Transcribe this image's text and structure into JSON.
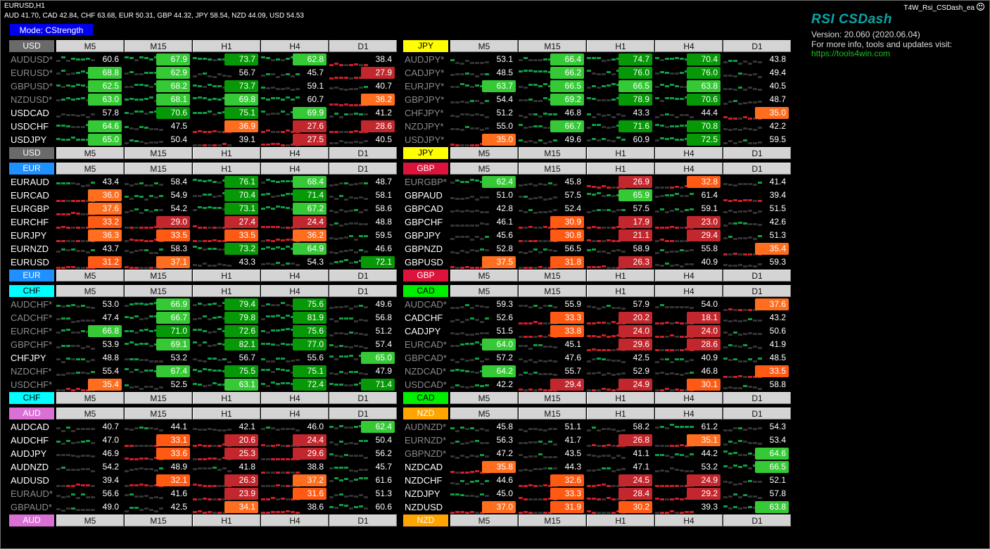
{
  "window": {
    "chart_title": "EURUSD,H1",
    "strength_line": "AUD 41.70, CAD 42.84, CHF 63.68, EUR 50.31, GBP 44.32, JPY 58.54, NZD 44.09, USD 54.53",
    "ea_name": "T4W_Rsi_CSDash_ea"
  },
  "mode_button": "Mode: CStrength",
  "info": {
    "title": "RSI CSDash",
    "version": "Version: 20.060 (2020.06.04)",
    "more": "For more info, tools and updates visit:",
    "link": "https://tools4win.com"
  },
  "timeframes": [
    "M5",
    "M15",
    "H1",
    "H4",
    "D1"
  ],
  "colors": {
    "green_dark": "#069806",
    "green_light": "#36c936",
    "red": "#c2272d",
    "orange": "#ff5a14",
    "orange_light": "#ff6d1e",
    "bar_gray": "#333333",
    "bar_green": "#0f9d44",
    "bar_red": "#cc1f2a",
    "sym_normal": "#ffffff",
    "sym_inverted": "#8a8a8a"
  },
  "panels": [
    {
      "currency": "USD",
      "color": "#6a6a6a",
      "text_color": "#ffffff",
      "rows": [
        {
          "symbol": "AUDUSD*",
          "inv": true,
          "values": [
            "60.6",
            "67.9",
            "73.7",
            "62.8",
            "38.4"
          ]
        },
        {
          "symbol": "EURUSD*",
          "inv": true,
          "values": [
            "68.8",
            "62.9",
            "56.7",
            "45.7",
            "27.9"
          ]
        },
        {
          "symbol": "GBPUSD*",
          "inv": true,
          "values": [
            "62.5",
            "68.2",
            "73.7",
            "59.1",
            "40.7"
          ]
        },
        {
          "symbol": "NZDUSD*",
          "inv": true,
          "values": [
            "63.0",
            "68.1",
            "69.8",
            "60.7",
            "36.2"
          ]
        },
        {
          "symbol": "USDCAD",
          "inv": false,
          "values": [
            "57.8",
            "70.6",
            "75.1",
            "69.9",
            "41.2"
          ]
        },
        {
          "symbol": "USDCHF",
          "inv": false,
          "values": [
            "64.6",
            "47.5",
            "36.9",
            "27.6",
            "28.6"
          ]
        },
        {
          "symbol": "USDJPY",
          "inv": false,
          "values": [
            "65.0",
            "50.4",
            "39.1",
            "27.5",
            "40.5"
          ]
        }
      ]
    },
    {
      "currency": "JPY",
      "color": "#ffff00",
      "text_color": "#000000",
      "rows": [
        {
          "symbol": "AUDJPY*",
          "inv": true,
          "values": [
            "53.1",
            "66.4",
            "74.7",
            "70.4",
            "43.8"
          ]
        },
        {
          "symbol": "CADJPY*",
          "inv": true,
          "values": [
            "48.5",
            "66.2",
            "76.0",
            "76.0",
            "49.4"
          ]
        },
        {
          "symbol": "EURJPY*",
          "inv": true,
          "values": [
            "63.7",
            "66.5",
            "66.5",
            "63.8",
            "40.5"
          ]
        },
        {
          "symbol": "GBPJPY*",
          "inv": true,
          "values": [
            "54.4",
            "69.2",
            "78.9",
            "70.6",
            "48.7"
          ]
        },
        {
          "symbol": "CHFJPY*",
          "inv": true,
          "values": [
            "51.2",
            "46.8",
            "43.3",
            "44.4",
            "35.0"
          ]
        },
        {
          "symbol": "NZDJPY*",
          "inv": true,
          "values": [
            "55.0",
            "66.7",
            "71.6",
            "70.8",
            "42.2"
          ]
        },
        {
          "symbol": "USDJPY*",
          "inv": true,
          "values": [
            "35.0",
            "49.6",
            "60.9",
            "72.5",
            "59.5"
          ]
        }
      ]
    },
    {
      "currency": "EUR",
      "color": "#1e90ff",
      "text_color": "#ffffff",
      "rows": [
        {
          "symbol": "EURAUD",
          "inv": false,
          "values": [
            "43.4",
            "58.4",
            "76.1",
            "68.4",
            "48.7"
          ]
        },
        {
          "symbol": "EURCAD",
          "inv": false,
          "values": [
            "36.0",
            "54.9",
            "70.4",
            "71.4",
            "58.1"
          ]
        },
        {
          "symbol": "EURGBP",
          "inv": false,
          "values": [
            "37.6",
            "54.2",
            "73.1",
            "67.2",
            "58.6"
          ]
        },
        {
          "symbol": "EURCHF",
          "inv": false,
          "values": [
            "33.2",
            "29.0",
            "27.4",
            "24.4",
            "48.8"
          ]
        },
        {
          "symbol": "EURJPY",
          "inv": false,
          "values": [
            "36.3",
            "33.5",
            "33.5",
            "36.2",
            "59.5"
          ]
        },
        {
          "symbol": "EURNZD",
          "inv": false,
          "values": [
            "43.7",
            "58.3",
            "73.2",
            "64.9",
            "46.6"
          ]
        },
        {
          "symbol": "EURUSD",
          "inv": false,
          "values": [
            "31.2",
            "37.1",
            "43.3",
            "54.3",
            "72.1"
          ]
        }
      ]
    },
    {
      "currency": "GBP",
      "color": "#dc143c",
      "text_color": "#ffffff",
      "rows": [
        {
          "symbol": "EURGBP*",
          "inv": true,
          "values": [
            "62.4",
            "45.8",
            "26.9",
            "32.8",
            "41.4"
          ]
        },
        {
          "symbol": "GBPAUD",
          "inv": false,
          "values": [
            "51.0",
            "57.5",
            "65.9",
            "61.4",
            "39.4"
          ]
        },
        {
          "symbol": "GBPCAD",
          "inv": false,
          "values": [
            "42.8",
            "52.4",
            "57.5",
            "59.1",
            "51.5"
          ]
        },
        {
          "symbol": "GBPCHF",
          "inv": false,
          "values": [
            "46.1",
            "30.9",
            "17.9",
            "23.0",
            "42.6"
          ]
        },
        {
          "symbol": "GBPJPY",
          "inv": false,
          "values": [
            "45.6",
            "30.8",
            "21.1",
            "29.4",
            "51.3"
          ]
        },
        {
          "symbol": "GBPNZD",
          "inv": false,
          "values": [
            "52.8",
            "56.5",
            "58.9",
            "55.8",
            "35.4"
          ]
        },
        {
          "symbol": "GBPUSD",
          "inv": false,
          "values": [
            "37.5",
            "31.8",
            "26.3",
            "40.9",
            "59.3"
          ]
        }
      ]
    },
    {
      "currency": "CHF",
      "color": "#00ffff",
      "text_color": "#000000",
      "rows": [
        {
          "symbol": "AUDCHF*",
          "inv": true,
          "values": [
            "53.0",
            "66.9",
            "79.4",
            "75.6",
            "49.6"
          ]
        },
        {
          "symbol": "CADCHF*",
          "inv": true,
          "values": [
            "47.4",
            "66.7",
            "79.8",
            "81.9",
            "56.8"
          ]
        },
        {
          "symbol": "EURCHF*",
          "inv": true,
          "values": [
            "66.8",
            "71.0",
            "72.6",
            "75.6",
            "51.2"
          ]
        },
        {
          "symbol": "GBPCHF*",
          "inv": true,
          "values": [
            "53.9",
            "69.1",
            "82.1",
            "77.0",
            "57.4"
          ]
        },
        {
          "symbol": "CHFJPY",
          "inv": false,
          "values": [
            "48.8",
            "53.2",
            "56.7",
            "55.6",
            "65.0"
          ]
        },
        {
          "symbol": "NZDCHF*",
          "inv": true,
          "values": [
            "55.4",
            "67.4",
            "75.5",
            "75.1",
            "47.9"
          ]
        },
        {
          "symbol": "USDCHF*",
          "inv": true,
          "values": [
            "35.4",
            "52.5",
            "63.1",
            "72.4",
            "71.4"
          ]
        }
      ]
    },
    {
      "currency": "CAD",
      "color": "#00ee00",
      "text_color": "#000000",
      "rows": [
        {
          "symbol": "AUDCAD*",
          "inv": true,
          "values": [
            "59.3",
            "55.9",
            "57.9",
            "54.0",
            "37.6"
          ]
        },
        {
          "symbol": "CADCHF",
          "inv": false,
          "values": [
            "52.6",
            "33.3",
            "20.2",
            "18.1",
            "43.2"
          ]
        },
        {
          "symbol": "CADJPY",
          "inv": false,
          "values": [
            "51.5",
            "33.8",
            "24.0",
            "24.0",
            "50.6"
          ]
        },
        {
          "symbol": "EURCAD*",
          "inv": true,
          "values": [
            "64.0",
            "45.1",
            "29.6",
            "28.6",
            "41.9"
          ]
        },
        {
          "symbol": "GBPCAD*",
          "inv": true,
          "values": [
            "57.2",
            "47.6",
            "42.5",
            "40.9",
            "48.5"
          ]
        },
        {
          "symbol": "NZDCAD*",
          "inv": true,
          "values": [
            "64.2",
            "55.7",
            "52.9",
            "46.8",
            "33.5"
          ]
        },
        {
          "symbol": "USDCAD*",
          "inv": true,
          "values": [
            "42.2",
            "29.4",
            "24.9",
            "30.1",
            "58.8"
          ]
        }
      ]
    },
    {
      "currency": "AUD",
      "color": "#da70d6",
      "text_color": "#ffffff",
      "rows": [
        {
          "symbol": "AUDCAD",
          "inv": false,
          "values": [
            "40.7",
            "44.1",
            "42.1",
            "46.0",
            "62.4"
          ]
        },
        {
          "symbol": "AUDCHF",
          "inv": false,
          "values": [
            "47.0",
            "33.1",
            "20.6",
            "24.4",
            "50.4"
          ]
        },
        {
          "symbol": "AUDJPY",
          "inv": false,
          "values": [
            "46.9",
            "33.6",
            "25.3",
            "29.6",
            "56.2"
          ]
        },
        {
          "symbol": "AUDNZD",
          "inv": false,
          "values": [
            "54.2",
            "48.9",
            "41.8",
            "38.8",
            "45.7"
          ]
        },
        {
          "symbol": "AUDUSD",
          "inv": false,
          "values": [
            "39.4",
            "32.1",
            "26.3",
            "37.2",
            "61.6"
          ]
        },
        {
          "symbol": "EURAUD*",
          "inv": true,
          "values": [
            "56.6",
            "41.6",
            "23.9",
            "31.6",
            "51.3"
          ]
        },
        {
          "symbol": "GBPAUD*",
          "inv": true,
          "values": [
            "49.0",
            "42.5",
            "34.1",
            "38.6",
            "60.6"
          ]
        }
      ]
    },
    {
      "currency": "NZD",
      "color": "#ffa500",
      "text_color": "#ffffff",
      "rows": [
        {
          "symbol": "AUDNZD*",
          "inv": true,
          "values": [
            "45.8",
            "51.1",
            "58.2",
            "61.2",
            "54.3"
          ]
        },
        {
          "symbol": "EURNZD*",
          "inv": true,
          "values": [
            "56.3",
            "41.7",
            "26.8",
            "35.1",
            "53.4"
          ]
        },
        {
          "symbol": "GBPNZD*",
          "inv": true,
          "values": [
            "47.2",
            "43.5",
            "41.1",
            "44.2",
            "64.6"
          ]
        },
        {
          "symbol": "NZDCAD",
          "inv": false,
          "values": [
            "35.8",
            "44.3",
            "47.1",
            "53.2",
            "66.5"
          ]
        },
        {
          "symbol": "NZDCHF",
          "inv": false,
          "values": [
            "44.6",
            "32.6",
            "24.5",
            "24.9",
            "52.1"
          ]
        },
        {
          "symbol": "NZDJPY",
          "inv": false,
          "values": [
            "45.0",
            "33.3",
            "28.4",
            "29.2",
            "57.8"
          ]
        },
        {
          "symbol": "NZDUSD",
          "inv": false,
          "values": [
            "37.0",
            "31.9",
            "30.2",
            "39.3",
            "63.8"
          ]
        }
      ]
    }
  ]
}
